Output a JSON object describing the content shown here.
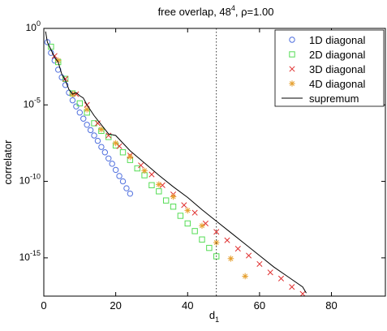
{
  "chart_data": {
    "type": "scatter",
    "title_main": "free overlap, 48",
    "title_sup": "4",
    "title_tail": ", ρ=1.00",
    "xlabel_main": "d",
    "xlabel_sub": "1",
    "ylabel": "correlator",
    "xlim": [
      0,
      95
    ],
    "ylim_log10": [
      -17.5,
      0
    ],
    "y_scale": "log",
    "x_ticks": [
      0,
      20,
      40,
      60,
      80
    ],
    "x_tick_labels": [
      "0",
      "20",
      "40",
      "60",
      "80"
    ],
    "y_ticks_log10": [
      0,
      -5,
      -10,
      -15
    ],
    "y_tick_base": "10",
    "y_tick_exps": [
      "0",
      "-5",
      "-10",
      "-15"
    ],
    "grid": false,
    "legend_position": "top-right",
    "vline_x": 48,
    "series": [
      {
        "name": "1D diagonal",
        "marker": "circle",
        "color": "#4f6fde",
        "x": [
          1,
          2,
          3,
          4,
          5,
          6,
          7,
          8,
          9,
          10,
          11,
          12,
          13,
          14,
          15,
          16,
          17,
          18,
          19,
          20,
          21,
          22,
          23,
          24
        ],
        "log10_y": [
          -0.9,
          -1.6,
          -2.1,
          -2.7,
          -3.2,
          -3.7,
          -4.2,
          -4.7,
          -5.1,
          -5.5,
          -5.9,
          -6.3,
          -6.65,
          -7.0,
          -7.35,
          -7.75,
          -8.1,
          -8.5,
          -8.85,
          -9.25,
          -9.65,
          -10.0,
          -10.45,
          -10.8
        ]
      },
      {
        "name": "2D diagonal",
        "marker": "square",
        "color": "#55dd55",
        "x": [
          2,
          4,
          6,
          8,
          10,
          12,
          14,
          16,
          18,
          20,
          22,
          24,
          26,
          28,
          30,
          32,
          34,
          36,
          38,
          40,
          42,
          44,
          46,
          48
        ],
        "log10_y": [
          -1.2,
          -2.2,
          -3.3,
          -4.25,
          -4.9,
          -5.5,
          -6.2,
          -6.7,
          -7.1,
          -7.65,
          -8.1,
          -8.6,
          -9.15,
          -9.6,
          -10.25,
          -10.65,
          -11.25,
          -11.65,
          -12.25,
          -12.75,
          -13.25,
          -13.8,
          -14.35,
          -14.9
        ]
      },
      {
        "name": "3D diagonal",
        "marker": "x",
        "color": "#e03030",
        "x": [
          3,
          6,
          9,
          12,
          15,
          18,
          21,
          24,
          27,
          30,
          33,
          36,
          39,
          42,
          45,
          48,
          51,
          54,
          57,
          60,
          63,
          66,
          69,
          72
        ],
        "log10_y": [
          -1.8,
          -3.3,
          -4.3,
          -5.0,
          -6.2,
          -7.0,
          -7.7,
          -8.3,
          -8.95,
          -9.55,
          -10.25,
          -10.85,
          -11.55,
          -12.05,
          -12.75,
          -13.3,
          -13.85,
          -14.4,
          -14.85,
          -15.4,
          -15.95,
          -16.35,
          -16.9,
          -17.35
        ]
      },
      {
        "name": "4D diagonal",
        "marker": "star",
        "color": "#e6a030",
        "x": [
          4,
          8,
          12,
          16,
          20,
          24,
          28,
          32,
          36,
          40,
          44,
          48,
          52,
          56
        ],
        "log10_y": [
          -2.1,
          -4.3,
          -5.3,
          -6.6,
          -7.5,
          -8.4,
          -9.3,
          -10.2,
          -11.0,
          -11.9,
          -12.9,
          -14.0,
          -15.05,
          -16.2
        ]
      },
      {
        "name": "supremum",
        "marker": "line",
        "color": "#000000",
        "x": [
          0.5,
          1,
          2,
          3,
          4,
          5,
          6,
          7,
          8,
          9,
          10,
          11,
          12,
          14,
          16,
          18,
          20,
          24,
          28,
          32,
          36,
          40,
          44,
          48,
          52,
          56,
          60,
          64,
          68,
          72,
          73
        ],
        "log10_y": [
          -0.2,
          -0.9,
          -1.4,
          -1.9,
          -2.2,
          -3.0,
          -3.4,
          -4.0,
          -4.3,
          -4.2,
          -4.4,
          -4.55,
          -5.0,
          -5.7,
          -6.3,
          -6.9,
          -7.0,
          -8.0,
          -8.8,
          -9.6,
          -10.35,
          -11.05,
          -11.85,
          -12.6,
          -13.35,
          -14.1,
          -14.85,
          -15.6,
          -16.25,
          -16.9,
          -17.3
        ]
      }
    ]
  }
}
